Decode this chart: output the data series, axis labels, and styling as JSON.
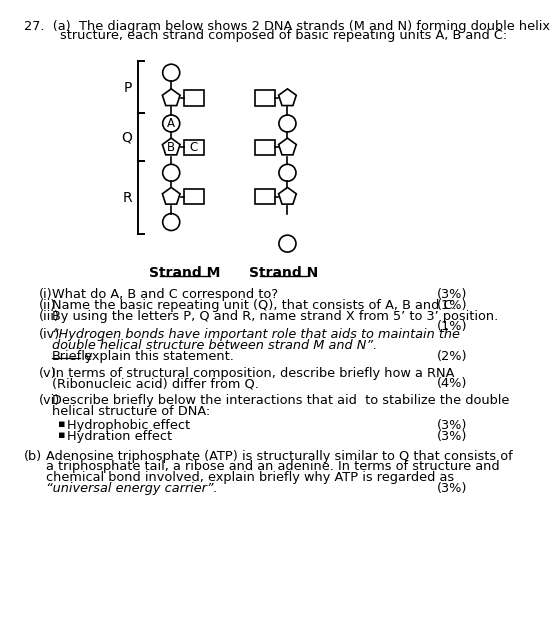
{
  "bg_color": "#ffffff",
  "fig_width": 6.02,
  "fig_height": 7.98,
  "strand_M_label": "Strand M",
  "strand_N_label": "Strand N",
  "P_label": "P",
  "Q_label": "Q",
  "R_label": "R",
  "A_label": "A",
  "B_label": "B",
  "C_label": "C",
  "header_line1": "27.  (a)  The diagram below shows 2 DNA strands (M and N) forming double helix",
  "header_line2": "structure, each strand composed of basic repeating units A, B and C:",
  "q1_num": "(i)",
  "q1_text": "What do A, B and C correspond to?",
  "q1_marks": "(3%)",
  "q2_num": "(ii)",
  "q2_text": "Name the basic repeating unit (Q), that consists of A, B and C.",
  "q2_marks": "(1%)",
  "q3_num": "(iii)",
  "q3_text": "By using the letters P, Q and R, name strand X from 5’ to 3’ position.",
  "q3_marks": "(1%)",
  "q4_num": "(iv)",
  "q4_italic1": "“Hydrogen bonds have important role that aids to maintain the",
  "q4_italic2": "double helical structure between strand M and N”.",
  "q4_underline": "Briefly",
  "q4_plain": " explain this statement.",
  "q4_marks": "(2%)",
  "q5_num": "(v)",
  "q5_text1": "In terms of structural composition, describe briefly how a RNA",
  "q5_text2": "(Ribonucleic acid) differ from Q.",
  "q5_marks": "(4%)",
  "q6_num": "(vi)",
  "q6_text1": "Describe briefly below the interactions that aid  to stabilize the double",
  "q6_text2": "helical structure of DNA:",
  "q6_b1_text": "Hydrophobic effect",
  "q6_b1_marks": "(3%)",
  "q6_b2_text": "Hydration effect",
  "q6_b2_marks": "(3%)",
  "qb_num": "(b)",
  "qb_text1": "Adenosine triphosphate (ATP) is structurally similar to Q that consists of",
  "qb_text2": "a triphosphate tail, a ribose and an adenine. In terms of structure and",
  "qb_text3": "chemical bond involved, explain briefly why ATP is regarded as",
  "qb_italic": "“universal energy carrier”.",
  "qb_marks": "(3%)"
}
